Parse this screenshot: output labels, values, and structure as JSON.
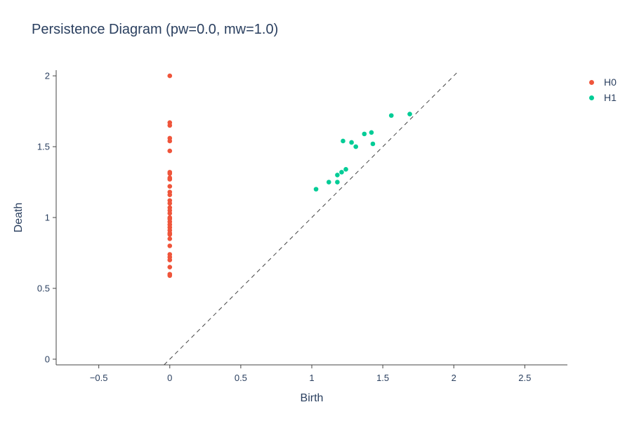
{
  "chart_data": {
    "type": "scatter",
    "title": "Persistence Diagram (pw=0.0, mw=1.0)",
    "xlabel": "Birth",
    "ylabel": "Death",
    "xlim": [
      -0.8,
      2.8
    ],
    "ylim": [
      -0.04,
      2.04
    ],
    "x_ticks": [
      -0.5,
      0,
      0.5,
      1,
      1.5,
      2,
      2.5
    ],
    "x_tick_labels": [
      "−0.5",
      "0",
      "0.5",
      "1",
      "1.5",
      "2",
      "2.5"
    ],
    "y_ticks": [
      0,
      0.5,
      1,
      1.5,
      2
    ],
    "y_tick_labels": [
      "0",
      "0.5",
      "1",
      "1.5",
      "2"
    ],
    "diagonal": {
      "style": "dashed",
      "color": "#444444",
      "from": [
        -0.04,
        -0.04
      ],
      "to": [
        2.02,
        2.02
      ]
    },
    "legend": "top-right",
    "series": [
      {
        "name": "H0",
        "color": "#ef553b",
        "x": [
          0,
          0,
          0,
          0,
          0,
          0,
          0,
          0,
          0,
          0,
          0,
          0,
          0,
          0,
          0,
          0,
          0,
          0,
          0,
          0,
          0,
          0,
          0,
          0,
          0,
          0,
          0,
          0,
          0,
          0,
          0,
          0,
          0,
          0
        ],
        "y": [
          2.0,
          1.67,
          1.65,
          1.56,
          1.54,
          1.47,
          1.32,
          1.31,
          1.28,
          1.27,
          1.22,
          1.18,
          1.16,
          1.12,
          1.1,
          1.07,
          1.05,
          1.03,
          1.0,
          0.97,
          0.95,
          0.93,
          0.91,
          0.89,
          0.85,
          0.8,
          0.74,
          0.72,
          0.7,
          0.65,
          0.6,
          0.59,
          0.88,
          0.99
        ]
      },
      {
        "name": "H1",
        "color": "#00cc96",
        "x": [
          1.03,
          1.12,
          1.18,
          1.18,
          1.21,
          1.22,
          1.24,
          1.28,
          1.31,
          1.37,
          1.42,
          1.43,
          1.56,
          1.69
        ],
        "y": [
          1.2,
          1.25,
          1.25,
          1.3,
          1.32,
          1.54,
          1.34,
          1.53,
          1.5,
          1.59,
          1.6,
          1.52,
          1.72,
          1.73
        ]
      }
    ]
  }
}
